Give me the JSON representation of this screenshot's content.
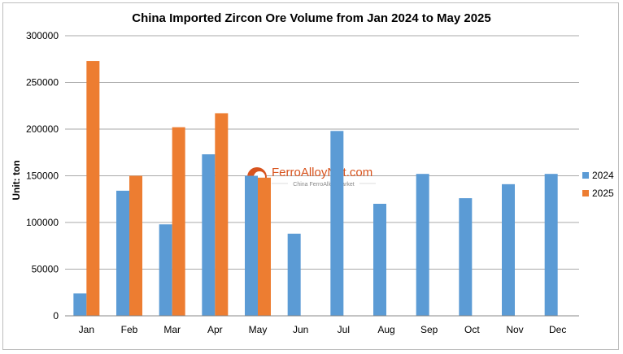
{
  "chart_data": {
    "type": "bar",
    "title": "China Imported Zircon Ore Volume from Jan 2024 to May 2025",
    "ylabel": "Unit: ton",
    "xlabel": "",
    "ylim": [
      0,
      300000
    ],
    "yticks": [
      0,
      50000,
      100000,
      150000,
      200000,
      250000,
      300000
    ],
    "grid": true,
    "legend_position": "right",
    "categories": [
      "Jan",
      "Feb",
      "Mar",
      "Apr",
      "May",
      "Jun",
      "Jul",
      "Aug",
      "Sep",
      "Oct",
      "Nov",
      "Dec"
    ],
    "series": [
      {
        "name": "2024",
        "color": "#5b9bd5",
        "values": [
          24000,
          134000,
          98000,
          173000,
          150000,
          88000,
          198000,
          120000,
          152000,
          126000,
          141000,
          152000
        ]
      },
      {
        "name": "2025",
        "color": "#ed7d31",
        "values": [
          273000,
          150000,
          202000,
          217000,
          148000,
          null,
          null,
          null,
          null,
          null,
          null,
          null
        ]
      }
    ]
  },
  "watermark": {
    "brand": "FerroAlloyNet.com",
    "tagline": "China FerroAlloy Market"
  }
}
